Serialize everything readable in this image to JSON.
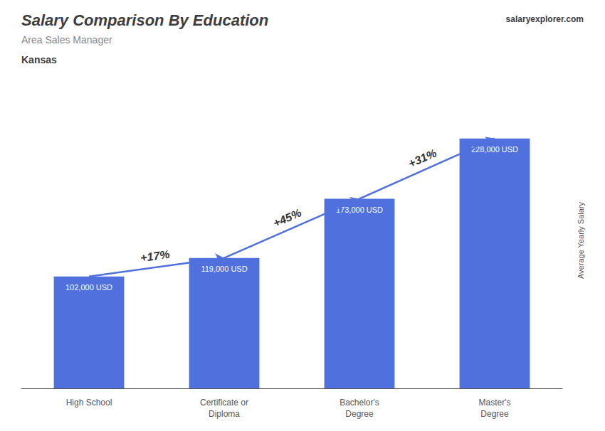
{
  "chart_data": {
    "type": "bar",
    "title": "Salary Comparison By Education",
    "subtitle": "Area Sales Manager",
    "location": "Kansas",
    "site": "salaryexplorer.com",
    "ylabel": "Average Yearly Salary",
    "categories": [
      "High School",
      "Certificate or\nDiploma",
      "Bachelor's\nDegree",
      "Master's\nDegree"
    ],
    "values": [
      102000,
      119000,
      173000,
      228000
    ],
    "value_labels": [
      "102,000 USD",
      "119,000 USD",
      "173,000 USD",
      "228,000 USD"
    ],
    "data_labels": true,
    "annotations": [
      "+17%",
      "+45%",
      "+31%"
    ],
    "ylim": [
      0,
      270000
    ],
    "grid": false,
    "tick_labels": "x"
  }
}
